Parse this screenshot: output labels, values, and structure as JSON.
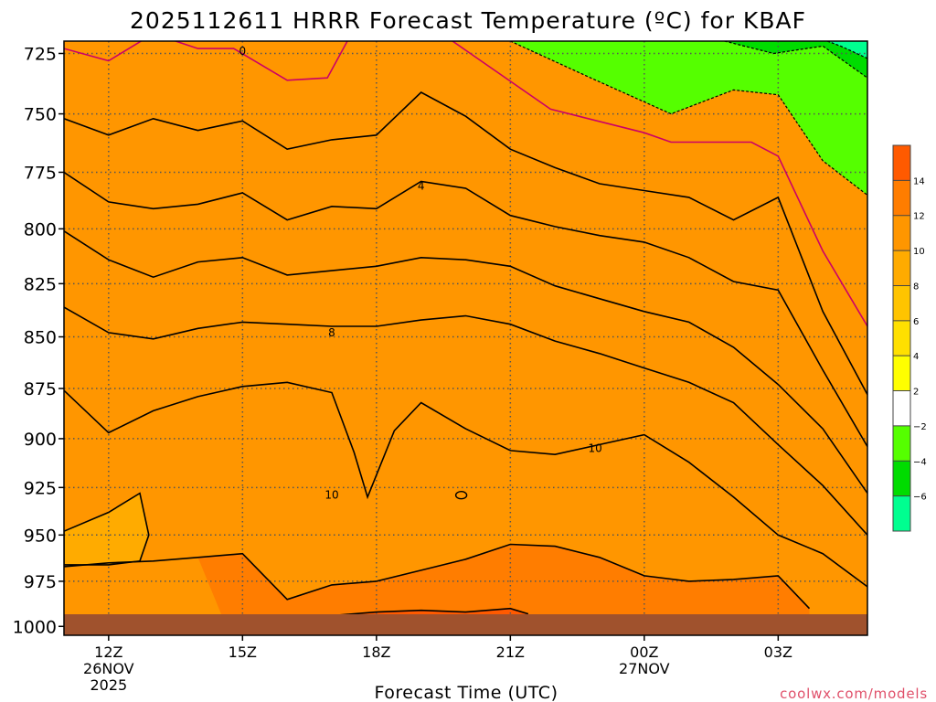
{
  "chart_data": {
    "type": "heatmap",
    "title": "2025112611 HRRR Forecast Temperature (ºC) for KBAF",
    "xlabel": "Forecast Time (UTC)",
    "ylabel": "",
    "watermark": "coolwx.com/models",
    "x_range_hours_from_12Z": [
      -1,
      17
    ],
    "y_range_hPa": [
      1005,
      720
    ],
    "y_ticks": [
      "725",
      "750",
      "775",
      "800",
      "825",
      "850",
      "875",
      "900",
      "925",
      "950",
      "975",
      "1000"
    ],
    "x_ticks": [
      {
        "label": "12Z",
        "sub1": "26NOV",
        "sub2": "2025",
        "hour": 0
      },
      {
        "label": "15Z",
        "sub1": "",
        "sub2": "",
        "hour": 3
      },
      {
        "label": "18Z",
        "sub1": "",
        "sub2": "",
        "hour": 6
      },
      {
        "label": "21Z",
        "sub1": "",
        "sub2": "",
        "hour": 9
      },
      {
        "label": "00Z",
        "sub1": "27NOV",
        "sub2": "",
        "hour": 12
      },
      {
        "label": "03Z",
        "sub1": "",
        "sub2": "",
        "hour": 15
      }
    ],
    "colorbar": {
      "levels": [
        -8,
        -6,
        -4,
        -2,
        2,
        4,
        6,
        8,
        10,
        12,
        14,
        16
      ],
      "colors": [
        "#00ff90",
        "#00dc00",
        "#55ff00",
        "#ffffff",
        "#ffff00",
        "#ffe000",
        "#ffc400",
        "#ffab00",
        "#ff9600",
        "#ff7d00",
        "#ff5a00"
      ],
      "tick_labels": [
        "−6",
        "−4",
        "−2",
        "2",
        "4",
        "6",
        "8",
        "10",
        "12",
        "14"
      ]
    },
    "contour_labels": [
      {
        "text": "0",
        "hour": 3.0,
        "p": 724
      },
      {
        "text": "4",
        "hour": 7.0,
        "p": 781
      },
      {
        "text": "8",
        "hour": 5.0,
        "p": 848
      },
      {
        "text": "10",
        "hour": 10.9,
        "p": 905
      },
      {
        "text": "10",
        "hour": 5.0,
        "p": 929
      }
    ],
    "contours": [
      {
        "level": 0,
        "color": "#cc0066",
        "x": [
          -1,
          0,
          1,
          2,
          2.8,
          4,
          4.9,
          5.5,
          6.9,
          9.9,
          12,
          12.6,
          14.4,
          15,
          16,
          17
        ],
        "p": [
          723,
          728,
          717,
          723,
          723,
          736,
          735,
          715,
          710,
          748,
          758,
          762,
          762,
          768,
          810,
          845
        ]
      },
      {
        "level": 2,
        "color": "#000000",
        "x": [
          -1,
          0,
          1,
          2,
          3,
          4,
          5,
          6,
          7,
          8,
          9,
          10,
          11,
          12,
          13,
          14,
          15,
          16,
          17
        ],
        "p": [
          752,
          759,
          752,
          757,
          753,
          765,
          761,
          759,
          741,
          751,
          765,
          773,
          780,
          783,
          786,
          796,
          786,
          838,
          878
        ]
      },
      {
        "level": 4,
        "color": "#000000",
        "x": [
          -1,
          0,
          1,
          2,
          3,
          4,
          5,
          6,
          7,
          8,
          9,
          10,
          11,
          12,
          13,
          14,
          15,
          16,
          17
        ],
        "p": [
          775,
          788,
          791,
          789,
          784,
          796,
          790,
          791,
          779,
          782,
          794,
          799,
          803,
          806,
          813,
          824,
          828,
          866,
          904
        ]
      },
      {
        "level": 6,
        "color": "#000000",
        "x": [
          -1,
          0,
          1,
          2,
          3,
          4,
          5,
          6,
          7,
          8,
          9,
          10,
          11,
          12,
          13,
          14,
          15,
          16,
          17
        ],
        "p": [
          801,
          814,
          822,
          815,
          813,
          821,
          819,
          817,
          813,
          814,
          817,
          826,
          832,
          838,
          843,
          855,
          873,
          895,
          928
        ]
      },
      {
        "level": 8,
        "color": "#000000",
        "x": [
          -1,
          0,
          1,
          2,
          3,
          4,
          5,
          6,
          7,
          8,
          9,
          10,
          11,
          12,
          13,
          14,
          15,
          16,
          17
        ],
        "p": [
          836,
          848,
          851,
          846,
          843,
          844,
          845,
          845,
          842,
          840,
          844,
          852,
          858,
          865,
          872,
          882,
          903,
          924,
          950
        ]
      },
      {
        "level": 10,
        "color": "#000000",
        "x": [
          -1,
          0,
          1,
          2,
          3,
          4,
          5,
          5.5,
          5.8,
          6.4,
          7,
          8,
          9,
          10,
          11,
          12,
          13,
          14,
          15,
          16,
          17
        ],
        "p": [
          876,
          897,
          886,
          879,
          874,
          872,
          877,
          907,
          930,
          896,
          882,
          895,
          906,
          908,
          903,
          898,
          912,
          930,
          950,
          960,
          978
        ]
      },
      {
        "level": 12,
        "color": "#000000",
        "x": [
          -1,
          0,
          1,
          2,
          3,
          4,
          5,
          6,
          7,
          8,
          9,
          10,
          11,
          12,
          13,
          14,
          15,
          15.7
        ],
        "p": [
          967,
          965,
          964,
          962,
          960,
          985,
          977,
          975,
          969,
          963,
          955,
          956,
          962,
          972,
          975,
          974,
          972,
          990
        ]
      },
      {
        "level": 14,
        "color": "#000000",
        "x": [
          3,
          4,
          5,
          6,
          7,
          8,
          9,
          9.4
        ],
        "p": [
          1002,
          996,
          994,
          992,
          991,
          992,
          990,
          993
        ]
      },
      {
        "level": 10,
        "color": "#000000",
        "x": [
          -1,
          0,
          0.7,
          0.9,
          0.7,
          0,
          -1
        ],
        "p": [
          948,
          938,
          928,
          950,
          964,
          966,
          966
        ]
      }
    ],
    "ground_pressure_hPa": 1001
  }
}
